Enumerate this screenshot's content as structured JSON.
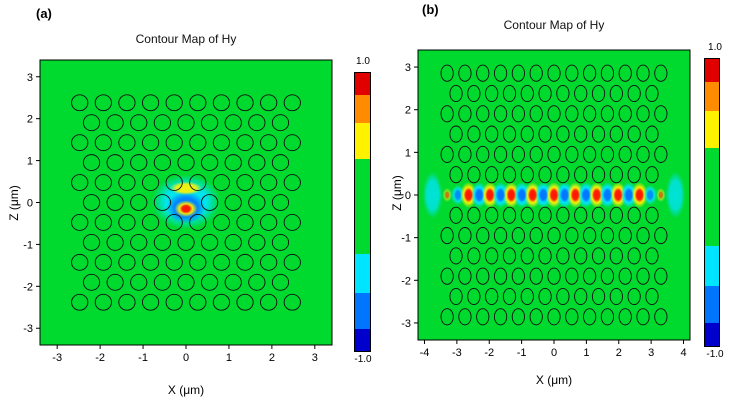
{
  "figure": {
    "panels": [
      {
        "corner_label": "(a)",
        "title": "Contour Map of Hy",
        "xlabel": "X (μm)",
        "ylabel": "Z (μm)",
        "colorbar": {
          "max_label": "1.0",
          "min_label": "-1.0"
        }
      },
      {
        "corner_label": "(b)",
        "title": "Contour Map of Hy",
        "xlabel": "X (μm)",
        "ylabel": "Z (μm)",
        "colorbar": {
          "max_label": "1.0",
          "min_label": "-1.0"
        }
      }
    ],
    "colors": {
      "background_green": "#00d92e",
      "palette": {
        "red": "#ff1500",
        "orange": "#ff8c00",
        "yellow": "#fff200",
        "green": "#00d92e",
        "cyan": "#00e5ff",
        "blue": "#0076ff",
        "darkblue": "#0000cc"
      },
      "colorbar_segments": [
        {
          "color": "#e00000",
          "frac": 0.08
        },
        {
          "color": "#ff8c00",
          "frac": 0.1
        },
        {
          "color": "#fff200",
          "frac": 0.13
        },
        {
          "color": "#00d92e",
          "frac": 0.34
        },
        {
          "color": "#00e5ff",
          "frac": 0.14
        },
        {
          "color": "#0076ff",
          "frac": 0.13
        },
        {
          "color": "#0000cc",
          "frac": 0.08
        }
      ]
    }
  },
  "chart_data": [
    {
      "type": "heatmap",
      "title": "Contour Map of Hy",
      "xlabel": "X (μm)",
      "ylabel": "Z (μm)",
      "xlim": [
        -3.4,
        3.4
      ],
      "zlim": [
        -3.4,
        3.4
      ],
      "x_ticks": [
        -3,
        -2,
        -1,
        0,
        1,
        2,
        3
      ],
      "z_ticks": [
        3,
        2,
        1,
        0,
        -1,
        -2,
        -3
      ],
      "colorbar_range": [
        -1.0,
        1.0
      ],
      "grid": false,
      "legend_position": "right",
      "description": "Hy field contour map of a triangular photonic-crystal lattice of air holes with a single point-defect cavity at the origin; localized dipole-like mode confined at the defect.",
      "lattice": {
        "type": "triangular",
        "pitch_um": 0.55,
        "row_spacing_um": 0.476,
        "hole_radius_um": 0.19,
        "rows": [
          -5,
          5
        ],
        "x_extent_um": 2.6,
        "missing_holes": [
          [
            0,
            0
          ]
        ],
        "missing_rows": []
      },
      "field_blobs": [
        {
          "x": 0,
          "z": 0.02,
          "rx": 0.8,
          "rz": 0.65,
          "color": "cyan",
          "alpha": 0.95
        },
        {
          "x": 0,
          "z": -0.12,
          "rx": 0.45,
          "rz": 0.38,
          "color": "blue",
          "alpha": 0.9
        },
        {
          "x": 0,
          "z": 0.34,
          "rx": 0.38,
          "rz": 0.16,
          "color": "yellow",
          "alpha": 0.95
        },
        {
          "x": 0,
          "z": -0.15,
          "rx": 0.27,
          "rz": 0.2,
          "color": "yellow",
          "alpha": 0.95
        },
        {
          "x": 0,
          "z": -0.15,
          "rx": 0.15,
          "rz": 0.12,
          "color": "red",
          "alpha": 1
        }
      ]
    },
    {
      "type": "heatmap",
      "title": "Contour Map of Hy",
      "xlabel": "X (μm)",
      "ylabel": "Z (μm)",
      "xlim": [
        -4.2,
        4.2
      ],
      "zlim": [
        -3.4,
        3.4
      ],
      "x_ticks": [
        -4,
        -3,
        -2,
        -1,
        0,
        1,
        2,
        3,
        4
      ],
      "z_ticks": [
        3,
        2,
        1,
        0,
        -1,
        -2,
        -3
      ],
      "colorbar_range": [
        -1.0,
        1.0
      ],
      "grid": false,
      "legend_position": "right",
      "description": "Hy field contour map of a W1 photonic-crystal waveguide (one row of holes removed along z=0); guided standing-wave mode with alternating positive/negative lobes along the channel.",
      "lattice": {
        "type": "triangular",
        "pitch_um": 0.55,
        "row_spacing_um": 0.476,
        "hole_radius_um": 0.19,
        "rows": [
          -6,
          6
        ],
        "x_extent_um": 3.55,
        "missing_holes": [],
        "missing_rows": [
          0
        ]
      },
      "field_blobs": [
        {
          "x": 0,
          "z": 0,
          "rx": 3.95,
          "rz": 0.27,
          "color": "cyan",
          "alpha": 0.45
        },
        {
          "x": -3.75,
          "z": 0,
          "rx": 0.3,
          "rz": 0.55,
          "color": "cyan",
          "alpha": 0.8
        },
        {
          "x": 3.75,
          "z": 0,
          "rx": 0.3,
          "rz": 0.55,
          "color": "cyan",
          "alpha": 0.8
        }
      ],
      "waveguide_mode": {
        "z": 0,
        "lobe_rx": 0.15,
        "lobe_rz": 0.18,
        "ring_scale": 1.7,
        "pos_core": "red",
        "pos_ring": "yellow",
        "neg_core": "blue",
        "neg_ring": "cyan",
        "lobes": [
          {
            "x": -3.3,
            "s": 1,
            "a": 0.55
          },
          {
            "x": -2.97,
            "s": -1,
            "a": 0.8
          },
          {
            "x": -2.64,
            "s": 1,
            "a": 1
          },
          {
            "x": -2.31,
            "s": -1,
            "a": 1
          },
          {
            "x": -1.98,
            "s": 1,
            "a": 1
          },
          {
            "x": -1.65,
            "s": -1,
            "a": 1
          },
          {
            "x": -1.32,
            "s": 1,
            "a": 1
          },
          {
            "x": -0.99,
            "s": -1,
            "a": 1
          },
          {
            "x": -0.66,
            "s": 1,
            "a": 1
          },
          {
            "x": -0.33,
            "s": -1,
            "a": 1
          },
          {
            "x": 0.0,
            "s": 1,
            "a": 1
          },
          {
            "x": 0.33,
            "s": -1,
            "a": 1
          },
          {
            "x": 0.66,
            "s": 1,
            "a": 1
          },
          {
            "x": 0.99,
            "s": -1,
            "a": 1
          },
          {
            "x": 1.32,
            "s": 1,
            "a": 1
          },
          {
            "x": 1.65,
            "s": -1,
            "a": 1
          },
          {
            "x": 1.98,
            "s": 1,
            "a": 1
          },
          {
            "x": 2.31,
            "s": -1,
            "a": 1
          },
          {
            "x": 2.64,
            "s": 1,
            "a": 1
          },
          {
            "x": 2.97,
            "s": -1,
            "a": 0.8
          },
          {
            "x": 3.3,
            "s": 1,
            "a": 0.55
          }
        ]
      }
    }
  ]
}
